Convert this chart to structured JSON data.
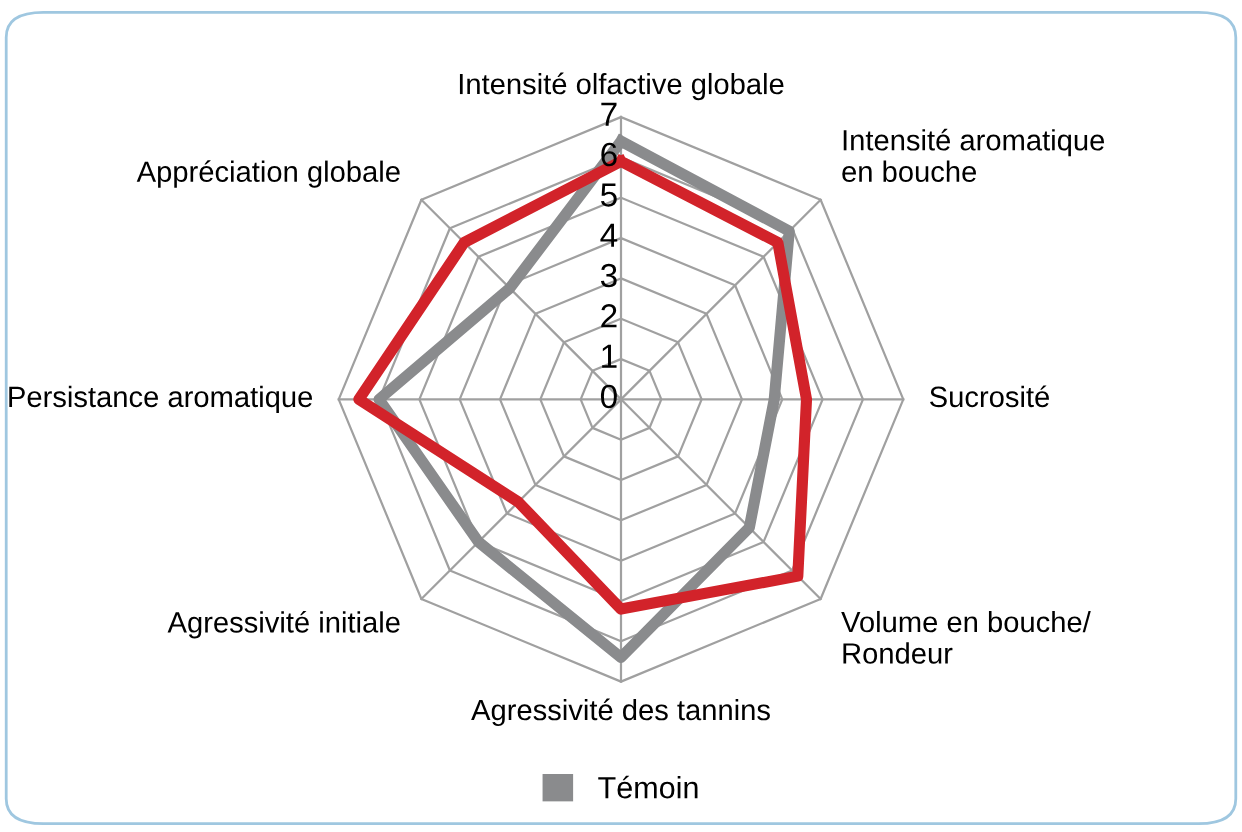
{
  "chart_data": {
    "type": "radar",
    "categories": [
      "Intensité olfactive globale",
      "Intensité aromatique\nen bouche",
      "Sucrosité",
      "Volume en bouche/\nRondeur",
      "Agressivité des tannins",
      "Agressivité initiale",
      "Persistance aromatique",
      "Appréciation globale"
    ],
    "series": [
      {
        "name": "Témoin",
        "color": "#8a8b8d",
        "values": [
          6.4,
          5.9,
          3.8,
          4.5,
          6.4,
          5.0,
          6.0,
          3.9
        ]
      },
      {
        "color": "#d2232a",
        "values": [
          5.9,
          5.5,
          4.6,
          6.2,
          5.2,
          3.6,
          6.5,
          5.5
        ]
      }
    ],
    "ylim": [
      0,
      7
    ],
    "yticks": [
      0,
      1,
      2,
      3,
      4,
      5,
      6,
      7
    ],
    "grid": true,
    "legend": "bottom"
  }
}
